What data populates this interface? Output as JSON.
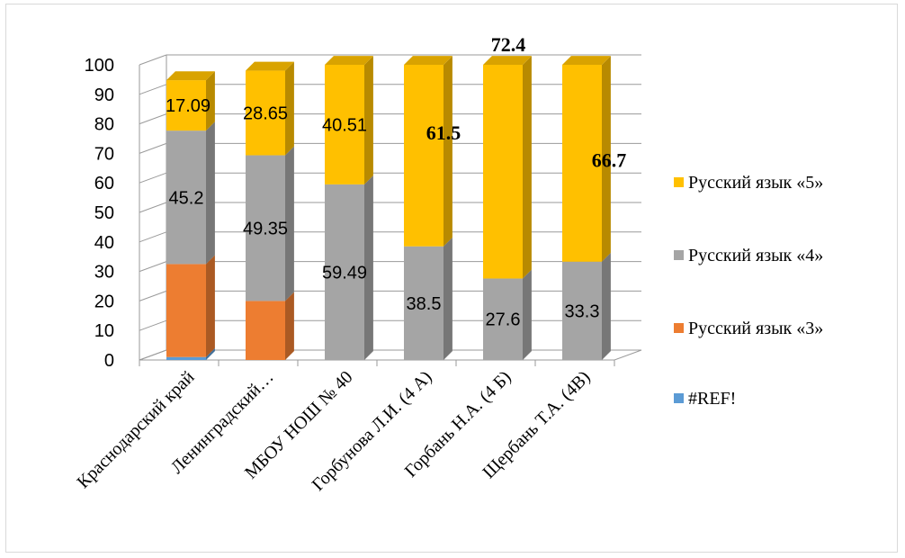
{
  "chart_data": {
    "type": "bar",
    "stacked": true,
    "three_d": true,
    "categories": [
      "Краснодарский край",
      "Ленинградский…",
      "МБОУ НОШ № 40",
      "Горбунова Л.И. (4 А)",
      "Горбань Н.А. (4 Б)",
      "Щербань Т.А. (4В)"
    ],
    "series": [
      {
        "name": "#REF!",
        "color": "#5b9bd5",
        "values": [
          1.0,
          0,
          0,
          0,
          0,
          0
        ],
        "labels": [
          "",
          "",
          "",
          "",
          "",
          ""
        ],
        "bold": [
          false,
          false,
          false,
          false,
          false,
          false
        ]
      },
      {
        "name": "Русский язык «3»",
        "color": "#ed7d31",
        "values": [
          31.5,
          20.0,
          0,
          0,
          0,
          0
        ],
        "labels": [
          "",
          "",
          "",
          "",
          "",
          ""
        ],
        "bold": [
          false,
          false,
          false,
          false,
          false,
          false
        ]
      },
      {
        "name": "Русский язык «4»",
        "color": "#a5a5a5",
        "values": [
          45.2,
          49.35,
          59.49,
          38.5,
          27.6,
          33.3
        ],
        "labels": [
          "45.2",
          "49.35",
          "59.49",
          "38.5",
          "27.6",
          "33.3"
        ],
        "bold": [
          false,
          false,
          false,
          false,
          false,
          false
        ]
      },
      {
        "name": "Русский язык «5»",
        "color": "#ffc000",
        "values": [
          17.09,
          28.65,
          40.51,
          61.5,
          72.4,
          66.7
        ],
        "labels": [
          "17.09",
          "28.65",
          "40.51",
          "61.5",
          "72.4",
          "66.7"
        ],
        "bold": [
          false,
          false,
          false,
          true,
          true,
          true
        ]
      }
    ],
    "ylim": [
      0,
      100
    ],
    "yticks": [
      "0",
      "10",
      "20",
      "30",
      "40",
      "50",
      "60",
      "70",
      "80",
      "90",
      "100"
    ],
    "grid": true,
    "legend": {
      "position": "right",
      "order": [
        "Русский язык «5»",
        "Русский язык «4»",
        "Русский язык «3»",
        "#REF!"
      ]
    }
  }
}
